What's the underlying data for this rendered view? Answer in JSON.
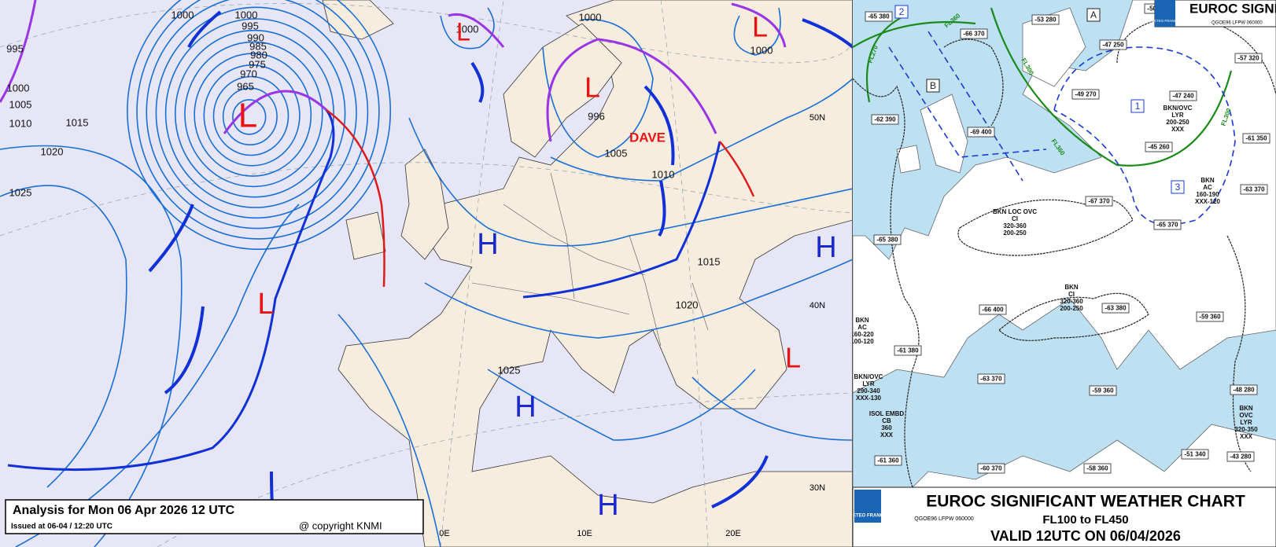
{
  "analysis": {
    "title": "Analysis for Mon 06 Apr 2026 12 UTC",
    "issued": "Issued at 06-04 / 12:20 UTC",
    "copyright": "@ copyright KNMI",
    "isobar_labels": [
      "1000",
      "995",
      "990",
      "985",
      "980",
      "975",
      "970",
      "965",
      "1005",
      "1010",
      "1015",
      "1020",
      "1025",
      "995",
      "1000",
      "1000",
      "1000",
      "1000",
      "1005",
      "1010",
      "1015",
      "1020",
      "1025",
      "996",
      "1000"
    ],
    "centers": [
      "L",
      "L",
      "L",
      "L",
      "L",
      "L",
      "H",
      "H",
      "H",
      "H"
    ],
    "storm_name": "DAVE",
    "graticule": [
      "50N",
      "40N",
      "30N",
      "0E",
      "10E",
      "20E"
    ]
  },
  "sigwx": {
    "brand": "METEO FRANCE",
    "header": "EUROC SIGNIFICANT WEATHER CHART",
    "code": "QGOE96 LFPW 060000",
    "title": "EUROC SIGNIFICANT WEATHER CHART",
    "levels": "FL100 to FL450",
    "valid": "VALID 12UTC ON 06/04/2026",
    "boxes": [
      "-65 380",
      "-66 370",
      "-53 280",
      "-50 300",
      "-47 250",
      "-57 320",
      "-62 390",
      "-69 400",
      "-49 270",
      "-47 240",
      "-45 260",
      "-61 350",
      "-63 370",
      "-67 370",
      "-65 370",
      "-65 380",
      "-66 400",
      "-63 380",
      "-59 360",
      "-61 380",
      "-63 370",
      "-59 360",
      "-48 280",
      "-61 360",
      "-60 370",
      "-58 360",
      "-51 340",
      "-43 280"
    ],
    "areas": [
      "A",
      "B",
      "1",
      "2",
      "3"
    ],
    "clouds": [
      [
        "BKN LOC OVC",
        "CI",
        "320-360",
        "200-250"
      ],
      [
        "BKN",
        "CI",
        "320-360",
        "200-250"
      ],
      [
        "BKN",
        "AC",
        "160-220",
        "100-120"
      ],
      [
        "BKN/OVC",
        "LYR",
        "290-340",
        "XXX-130"
      ],
      [
        "ISOL EMBD",
        "CB",
        "360",
        "XXX"
      ],
      [
        "BKN/OVC",
        "LYR",
        "200-250",
        "XXX"
      ],
      [
        "BKN",
        "AC",
        "160-190",
        "XXX-120"
      ],
      [
        "BKN",
        "OVC",
        "LYR",
        "320-350",
        "XXX"
      ]
    ],
    "jets": [
      "FL360",
      "FL270",
      "FL300",
      "FL360",
      "FL300"
    ]
  }
}
